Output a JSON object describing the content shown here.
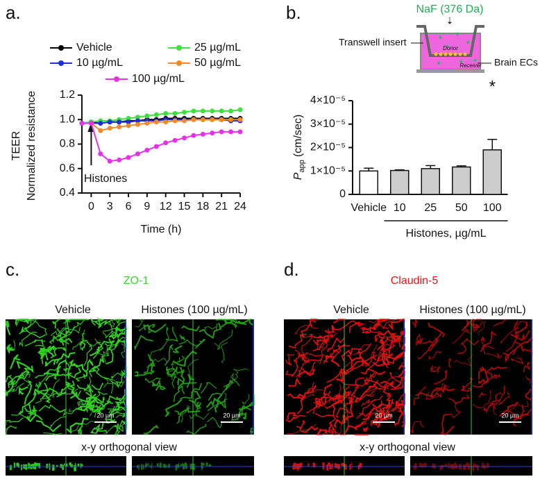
{
  "chart_data": [
    {
      "type": "line",
      "panel": "a.",
      "y_label": [
        "TEER",
        "Normalized resistance"
      ],
      "x_label": "Time (h)",
      "annotation": "Histones",
      "x": [
        -1.5,
        0,
        1.5,
        3,
        4.5,
        6,
        7.5,
        9,
        10.5,
        12,
        13.5,
        15,
        16.5,
        18,
        19.5,
        21,
        22.5,
        24
      ],
      "xlim": [
        -1.5,
        24
      ],
      "xticks": [
        0,
        3,
        6,
        9,
        12,
        15,
        18,
        21,
        24
      ],
      "ylim": [
        0.4,
        1.2
      ],
      "yticks": [
        0.4,
        0.6,
        0.8,
        {
          "value": 1,
          "label": "1.0"
        },
        1.2
      ],
      "series": [
        {
          "name": "Vehicle",
          "color": "#000000",
          "values": [
            0.97,
            0.98,
            0.97,
            0.98,
            0.98,
            0.99,
            0.99,
            1.0,
            1.0,
            1.01,
            1.01,
            1.01,
            1.01,
            1.01,
            1.01,
            1.01,
            1.01,
            1.01
          ]
        },
        {
          "name": "25 µg/mL",
          "color": "#3de03d",
          "values": [
            0.97,
            0.98,
            0.99,
            0.99,
            1.0,
            1.01,
            1.02,
            1.03,
            1.04,
            1.05,
            1.05,
            1.06,
            1.07,
            1.07,
            1.07,
            1.07,
            1.07,
            1.08
          ]
        },
        {
          "name": "10 µg/mL",
          "color": "#1f2fd6",
          "values": [
            0.97,
            0.97,
            0.97,
            0.98,
            0.98,
            0.98,
            0.99,
            0.99,
            0.99,
            1.0,
            1.0,
            1.0,
            1.0,
            1.0,
            1.0,
            1.0,
            0.99,
            0.99
          ]
        },
        {
          "name": "50 µg/mL",
          "color": "#f08a2a",
          "values": [
            0.97,
            0.97,
            0.91,
            0.93,
            0.94,
            0.95,
            0.96,
            0.97,
            0.98,
            0.98,
            0.99,
            0.99,
            1.0,
            1.0,
            1.0,
            1.0,
            1.0,
            1.0
          ]
        },
        {
          "name": "100 µg/mL",
          "color": "#e632e6",
          "values": [
            0.97,
            0.97,
            0.72,
            0.66,
            0.67,
            0.69,
            0.72,
            0.75,
            0.78,
            0.81,
            0.83,
            0.85,
            0.87,
            0.88,
            0.89,
            0.9,
            0.9,
            0.9
          ]
        }
      ]
    },
    {
      "type": "bar",
      "panel": "b.",
      "y_label": {
        "symbol": "P",
        "subscript": "app",
        "unit": "(cm/sec)"
      },
      "categories": [
        "Vehicle",
        "10",
        "25",
        "50",
        "100"
      ],
      "values": [
        1e-05,
        1.02e-05,
        1.1e-05,
        1.17e-05,
        1.9e-05
      ],
      "errors": [
        1.2e-06,
        3e-07,
        1.3e-06,
        5e-07,
        4.5e-06
      ],
      "colors": [
        "#ffffff",
        "#cccccc",
        "#cccccc",
        "#cccccc",
        "#cccccc"
      ],
      "ylim": [
        0,
        4e-05
      ],
      "yticks": [
        0,
        {
          "value": 1e-05,
          "label": "1×10⁻⁵"
        },
        {
          "value": 2e-05,
          "label": "2×10⁻⁵"
        },
        {
          "value": 3e-05,
          "label": "3×10⁻⁵"
        },
        {
          "value": 4e-05,
          "label": "4×10⁻⁵"
        }
      ],
      "significance": "*",
      "group_label": "Histones, µg/mL",
      "diagram": {
        "tracer": "NaF (376 Da)",
        "insert": "Transwell insert",
        "cells": "Brain ECs",
        "donor": "Donor",
        "receiver": "Receiver"
      }
    }
  ],
  "panels": [
    {
      "label": "c.",
      "stain": "ZO-1",
      "color": "#33dd22",
      "left": "Vehicle",
      "right": "Histones (100 µg/mL)",
      "scale": "20 µm",
      "ortho": "x-y orthogonal view"
    },
    {
      "label": "d.",
      "stain": "Claudin-5",
      "color": "#ee1111",
      "left": "Vehicle",
      "right": "Histones (100 µg/mL)",
      "scale": "20 µm",
      "ortho": "x-y orthogonal view"
    }
  ]
}
